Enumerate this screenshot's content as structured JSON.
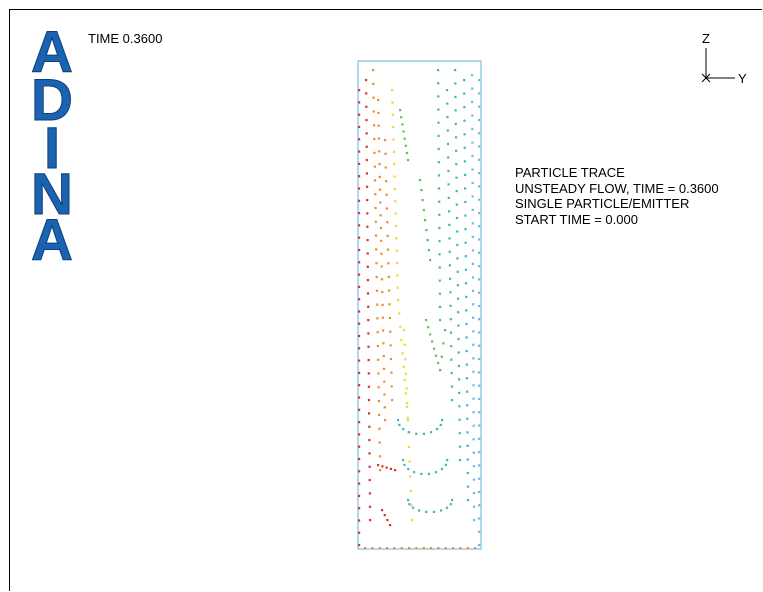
{
  "logo": {
    "letters": [
      "A",
      "D",
      "I",
      "N",
      "A"
    ]
  },
  "time_label": "TIME 0.3600",
  "info": {
    "line1": "PARTICLE TRACE",
    "line2": "UNSTEADY FLOW, TIME =  0.3600",
    "line3": "SINGLE PARTICLE/EMITTER",
    "line4": "START TIME = 0.000"
  },
  "axes": {
    "vertical": "Z",
    "horizontal": "Y"
  },
  "colors": {
    "logo_blue": "#1b62b0",
    "domain_outline": "#5ab4e6",
    "red": "#d93030",
    "orange": "#f08a2c",
    "yellow": "#e8dc2a",
    "green": "#5cc05a",
    "teal": "#3cb8b4",
    "sky": "#6cb8e8"
  }
}
